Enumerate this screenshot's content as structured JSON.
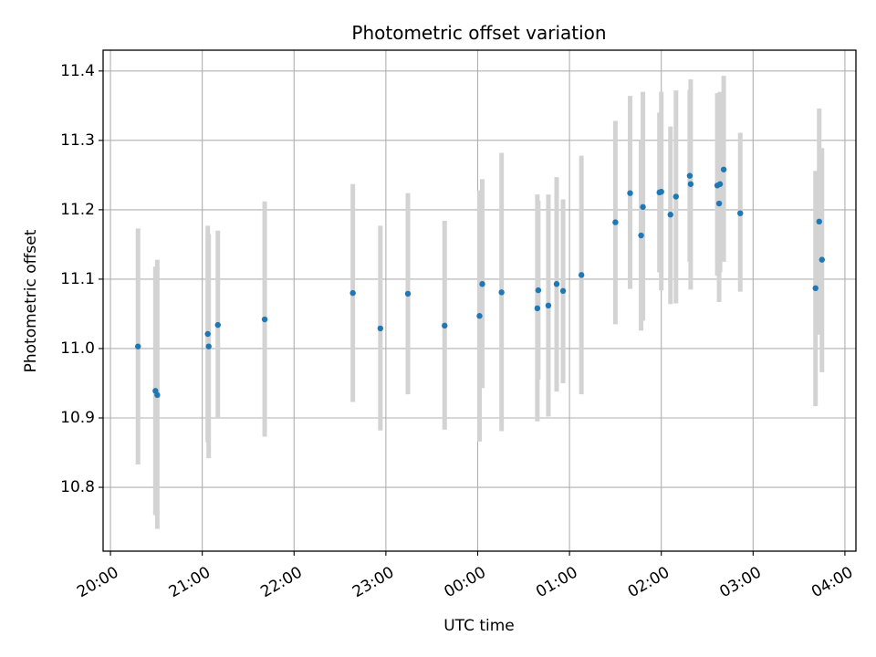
{
  "chart_data": {
    "type": "scatter",
    "title": "Photometric offset variation",
    "xlabel": "UTC time",
    "ylabel": "Photometric offset",
    "x_unit": "hours since 20:00 UTC",
    "xlim": [
      -0.08,
      8.12
    ],
    "ylim": [
      10.708,
      11.43
    ],
    "x_ticks": [
      {
        "value": 0,
        "label": "20:00"
      },
      {
        "value": 1,
        "label": "21:00"
      },
      {
        "value": 2,
        "label": "22:00"
      },
      {
        "value": 3,
        "label": "23:00"
      },
      {
        "value": 4,
        "label": "00:00"
      },
      {
        "value": 5,
        "label": "01:00"
      },
      {
        "value": 6,
        "label": "02:00"
      },
      {
        "value": 7,
        "label": "03:00"
      },
      {
        "value": 8,
        "label": "04:00"
      }
    ],
    "y_ticks": [
      {
        "value": 10.8,
        "label": "10.8"
      },
      {
        "value": 10.9,
        "label": "10.9"
      },
      {
        "value": 11.0,
        "label": "11.0"
      },
      {
        "value": 11.1,
        "label": "11.1"
      },
      {
        "value": 11.2,
        "label": "11.2"
      },
      {
        "value": 11.3,
        "label": "11.3"
      },
      {
        "value": 11.4,
        "label": "11.4"
      }
    ],
    "grid": true,
    "marker_color": "#1f77b4",
    "errorbar_color": "#d3d3d3",
    "points": [
      {
        "x": 0.3,
        "y": 11.003,
        "ylo": 10.833,
        "yhi": 11.173
      },
      {
        "x": 0.49,
        "y": 10.939,
        "ylo": 10.76,
        "yhi": 11.118
      },
      {
        "x": 0.51,
        "y": 10.933,
        "ylo": 10.74,
        "yhi": 11.128
      },
      {
        "x": 1.06,
        "y": 11.021,
        "ylo": 10.865,
        "yhi": 11.177
      },
      {
        "x": 1.07,
        "y": 11.003,
        "ylo": 10.842,
        "yhi": 11.165
      },
      {
        "x": 1.17,
        "y": 11.034,
        "ylo": 10.9,
        "yhi": 11.17
      },
      {
        "x": 1.68,
        "y": 11.042,
        "ylo": 10.873,
        "yhi": 11.212
      },
      {
        "x": 2.64,
        "y": 11.08,
        "ylo": 10.923,
        "yhi": 11.237
      },
      {
        "x": 2.94,
        "y": 11.029,
        "ylo": 10.882,
        "yhi": 11.177
      },
      {
        "x": 3.24,
        "y": 11.079,
        "ylo": 10.934,
        "yhi": 11.224
      },
      {
        "x": 3.64,
        "y": 11.033,
        "ylo": 10.883,
        "yhi": 11.184
      },
      {
        "x": 4.02,
        "y": 11.047,
        "ylo": 10.866,
        "yhi": 11.228
      },
      {
        "x": 4.05,
        "y": 11.093,
        "ylo": 10.943,
        "yhi": 11.244
      },
      {
        "x": 4.26,
        "y": 11.081,
        "ylo": 10.881,
        "yhi": 11.282
      },
      {
        "x": 4.65,
        "y": 11.058,
        "ylo": 10.895,
        "yhi": 11.222
      },
      {
        "x": 4.66,
        "y": 11.084,
        "ylo": 10.955,
        "yhi": 11.213
      },
      {
        "x": 4.77,
        "y": 11.062,
        "ylo": 10.902,
        "yhi": 11.222
      },
      {
        "x": 4.86,
        "y": 11.093,
        "ylo": 10.938,
        "yhi": 11.247
      },
      {
        "x": 4.93,
        "y": 11.083,
        "ylo": 10.95,
        "yhi": 11.215
      },
      {
        "x": 5.13,
        "y": 11.106,
        "ylo": 10.934,
        "yhi": 11.278
      },
      {
        "x": 5.5,
        "y": 11.182,
        "ylo": 11.035,
        "yhi": 11.328
      },
      {
        "x": 5.66,
        "y": 11.224,
        "ylo": 11.086,
        "yhi": 11.364
      },
      {
        "x": 5.78,
        "y": 11.163,
        "ylo": 11.026,
        "yhi": 11.3
      },
      {
        "x": 5.8,
        "y": 11.204,
        "ylo": 11.04,
        "yhi": 11.37
      },
      {
        "x": 5.98,
        "y": 11.225,
        "ylo": 11.11,
        "yhi": 11.34
      },
      {
        "x": 6.0,
        "y": 11.226,
        "ylo": 11.084,
        "yhi": 11.37
      },
      {
        "x": 6.1,
        "y": 11.193,
        "ylo": 11.064,
        "yhi": 11.32
      },
      {
        "x": 6.16,
        "y": 11.219,
        "ylo": 11.065,
        "yhi": 11.372
      },
      {
        "x": 6.31,
        "y": 11.249,
        "ylo": 11.125,
        "yhi": 11.373
      },
      {
        "x": 6.32,
        "y": 11.237,
        "ylo": 11.085,
        "yhi": 11.388
      },
      {
        "x": 6.61,
        "y": 11.235,
        "ylo": 11.105,
        "yhi": 11.368
      },
      {
        "x": 6.63,
        "y": 11.209,
        "ylo": 11.067,
        "yhi": 11.35
      },
      {
        "x": 6.64,
        "y": 11.237,
        "ylo": 11.11,
        "yhi": 11.37
      },
      {
        "x": 6.68,
        "y": 11.258,
        "ylo": 11.125,
        "yhi": 11.393
      },
      {
        "x": 6.86,
        "y": 11.195,
        "ylo": 11.082,
        "yhi": 11.311
      },
      {
        "x": 7.68,
        "y": 11.087,
        "ylo": 10.917,
        "yhi": 11.256
      },
      {
        "x": 7.72,
        "y": 11.183,
        "ylo": 11.02,
        "yhi": 11.346
      },
      {
        "x": 7.75,
        "y": 11.128,
        "ylo": 10.966,
        "yhi": 11.289
      }
    ]
  }
}
